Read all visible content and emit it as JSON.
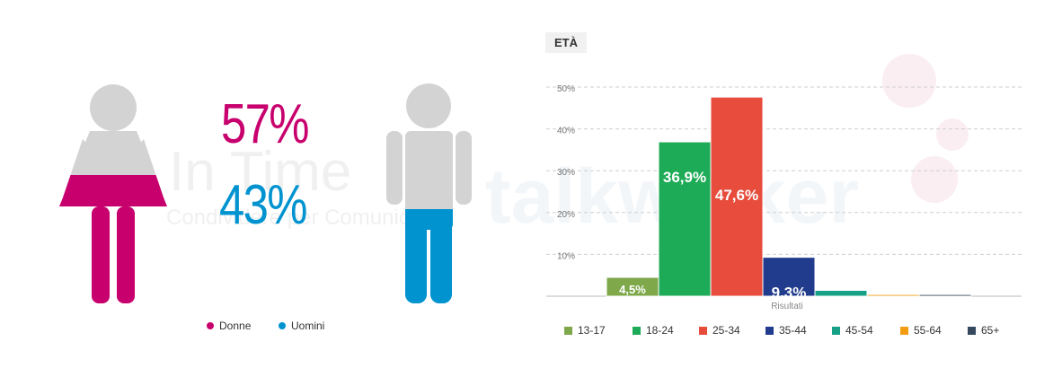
{
  "gender": {
    "women_pct": "57%",
    "men_pct": "43%",
    "legend": {
      "women": "Donne",
      "men": "Uomini"
    },
    "colors": {
      "women": "#c8006e",
      "men": "#0093d0",
      "neutral": "#d3d3d3"
    },
    "women_share": 0.57,
    "men_share": 0.43
  },
  "watermark": {
    "brand": "In Time",
    "tagline": "Condividere per Comunicare",
    "logo_text": "talkwalker"
  },
  "chart_data": {
    "type": "bar",
    "title": "ETÀ",
    "xlabel": "Risultati",
    "ylabel": "",
    "ylim": [
      0,
      50
    ],
    "yticks": [
      "10%",
      "20%",
      "30%",
      "40%",
      "50%"
    ],
    "grid": true,
    "legend_position": "bottom",
    "categories": [
      "13-17",
      "18-24",
      "25-34",
      "35-44",
      "45-54",
      "55-64",
      "65+"
    ],
    "values": [
      4.5,
      36.9,
      47.6,
      9.3,
      1.4,
      0.4,
      0.4
    ],
    "data_labels": [
      "4,5%",
      "36,9%",
      "47,6%",
      "9,3%",
      "",
      "",
      ""
    ],
    "colors": [
      "#7ea84a",
      "#1eab57",
      "#e74c3c",
      "#213b8d",
      "#16a085",
      "#f39c12",
      "#34495e"
    ]
  }
}
